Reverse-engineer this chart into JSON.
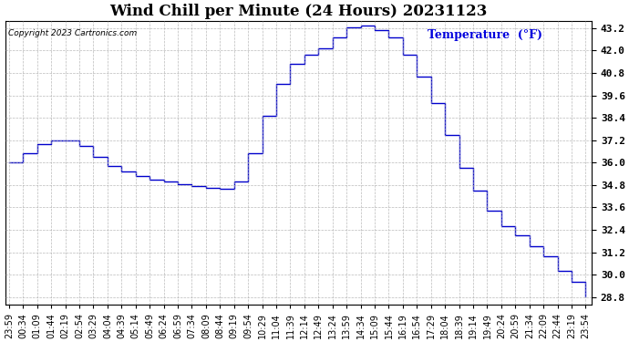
{
  "title": "Wind Chill per Minute (24 Hours) 20231123",
  "copyright_text": "Copyright 2023 Cartronics.com",
  "temp_label": "Temperature  (°F)",
  "temp_label_color": "#0000dd",
  "line_color": "#0000cc",
  "background_color": "#ffffff",
  "grid_color": "#aaaaaa",
  "ylim": [
    28.4,
    43.6
  ],
  "yticks": [
    28.8,
    30.0,
    31.2,
    32.4,
    33.6,
    34.8,
    36.0,
    37.2,
    38.4,
    39.6,
    40.8,
    42.0,
    43.2
  ],
  "xtick_labels": [
    "23:59",
    "00:34",
    "01:09",
    "01:44",
    "02:19",
    "02:54",
    "03:29",
    "04:04",
    "04:39",
    "05:14",
    "05:49",
    "06:24",
    "06:59",
    "07:34",
    "08:09",
    "08:44",
    "09:19",
    "09:54",
    "10:29",
    "11:04",
    "11:39",
    "12:14",
    "12:49",
    "13:24",
    "13:59",
    "14:34",
    "15:09",
    "15:44",
    "16:19",
    "16:54",
    "17:29",
    "18:04",
    "18:39",
    "19:14",
    "19:49",
    "20:24",
    "20:59",
    "21:34",
    "22:09",
    "22:44",
    "23:19",
    "23:54"
  ],
  "x_values": [
    0,
    35,
    70,
    105,
    140,
    175,
    210,
    245,
    280,
    315,
    350,
    385,
    420,
    455,
    490,
    525,
    560,
    595,
    630,
    665,
    700,
    735,
    770,
    805,
    840,
    875,
    910,
    945,
    980,
    1015,
    1050,
    1085,
    1120,
    1155,
    1190,
    1225,
    1260,
    1295,
    1330,
    1365,
    1400,
    1435
  ],
  "y_values": [
    36.0,
    36.5,
    37.0,
    37.2,
    37.2,
    36.9,
    36.3,
    35.8,
    35.5,
    35.3,
    35.1,
    35.0,
    34.85,
    34.75,
    34.65,
    34.6,
    35.0,
    36.5,
    38.5,
    40.2,
    41.3,
    41.8,
    42.1,
    42.7,
    43.25,
    43.35,
    43.1,
    42.7,
    41.8,
    40.6,
    39.2,
    37.5,
    35.7,
    34.5,
    33.4,
    32.6,
    32.1,
    31.5,
    31.0,
    30.2,
    29.6,
    28.85
  ],
  "title_fontsize": 12,
  "tick_fontsize": 7,
  "ytick_fontsize": 8
}
